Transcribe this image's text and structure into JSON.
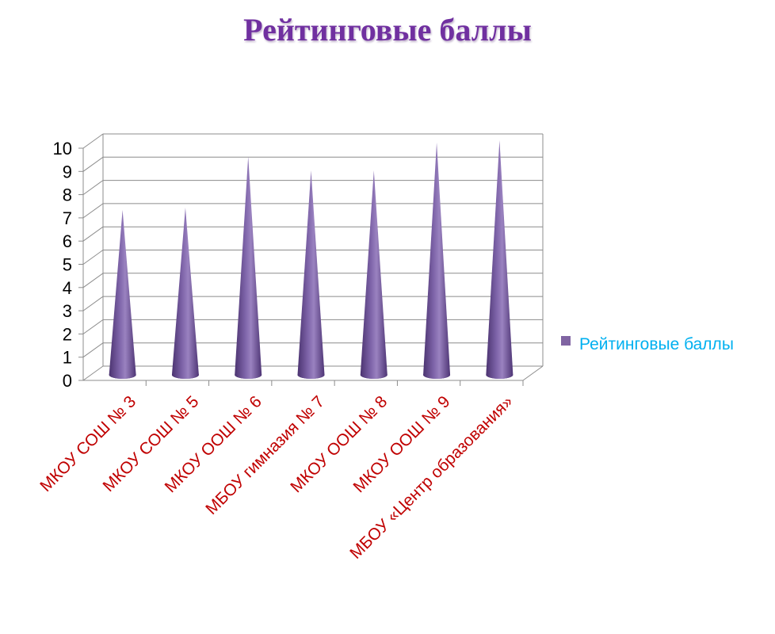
{
  "chart_data": {
    "type": "bar",
    "bar_shape": "cone",
    "title": "Рейтинговые баллы",
    "categories": [
      "МКОУ СОШ № 3",
      "МКОУ СОШ № 5",
      "МКОУ ООШ № 6",
      "МБОУ гимназия № 7",
      "МКОУ  ООШ № 8",
      "МКОУ ООШ № 9",
      "МБОУ «Центр образования»"
    ],
    "series": [
      {
        "name": "Рейтинговые баллы",
        "values": [
          7,
          7.1,
          9.3,
          8.7,
          8.7,
          9.9,
          10
        ]
      }
    ],
    "ylim": [
      0,
      10
    ],
    "yticks": [
      0,
      1,
      2,
      3,
      4,
      5,
      6,
      7,
      8,
      9,
      10
    ],
    "xlabel": "",
    "ylabel": "",
    "grid": true,
    "legend_position": "right",
    "colors": {
      "title": "#7030a0",
      "bar": "#8064a2",
      "tick_x": "#c00000",
      "legend_text": "#00b0f0",
      "grid": "#8c8c8c"
    }
  }
}
